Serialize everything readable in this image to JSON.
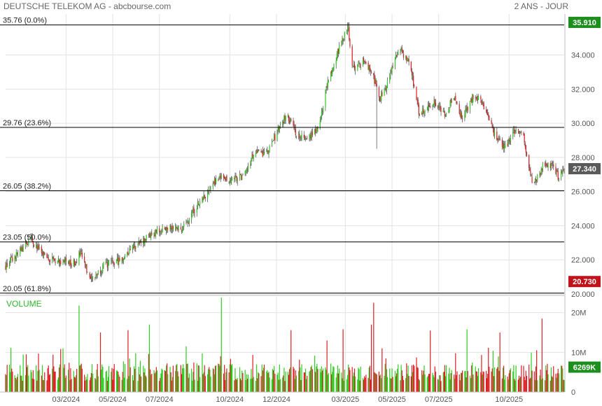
{
  "header": {
    "title": "DEUTSCHE TELEKOM AG - abcbourse.com",
    "period": "2 ANS - JOUR"
  },
  "colors": {
    "up": "#2ecc1f",
    "down": "#dd1f24",
    "grid": "#e3e3e3",
    "fib_line": "#000000",
    "high_badge": "#1e8f1e",
    "last_badge": "#5a5a5a",
    "low_badge": "#c0141a",
    "vol_badge": "#1e8f1e",
    "volume_label": "#2fb52f"
  },
  "chart_data": [
    {
      "type": "candlestick",
      "title": "DEUTSCHE TELEKOM AG - abcbourse.com",
      "period": "2 ANS - JOUR",
      "ylim": [
        20,
        36.4
      ],
      "y_ticks": [
        "20.000",
        "22.000",
        "24.000",
        "26.000",
        "28.000",
        "30.000",
        "32.000",
        "34.000"
      ],
      "x_ticks": [
        "03/2024",
        "05/2024",
        "07/2024",
        "10/2024",
        "12/2024",
        "03/2025",
        "05/2025",
        "07/2025",
        "10/2025"
      ],
      "x_tick_dates": [
        "2024-03-01",
        "2024-05-01",
        "2024-07-01",
        "2024-10-01",
        "2024-12-01",
        "2025-03-01",
        "2025-05-01",
        "2025-07-01",
        "2025-10-01"
      ],
      "start_date": "2023-12-13",
      "end_date": "2025-12-12",
      "price_path": [
        [
          "2023-12-13",
          21.6
        ],
        [
          "2024-01-05",
          22.7
        ],
        [
          "2024-01-15",
          23.2
        ],
        [
          "2024-02-01",
          22.2
        ],
        [
          "2024-02-15",
          22.0
        ],
        [
          "2024-03-01",
          21.9
        ],
        [
          "2024-03-10",
          21.7
        ],
        [
          "2024-03-20",
          22.4
        ],
        [
          "2024-03-28",
          21.4
        ],
        [
          "2024-04-05",
          20.9
        ],
        [
          "2024-04-20",
          21.7
        ],
        [
          "2024-05-01",
          21.8
        ],
        [
          "2024-05-15",
          22.1
        ],
        [
          "2024-05-25",
          22.7
        ],
        [
          "2024-06-10",
          23.1
        ],
        [
          "2024-06-25",
          23.6
        ],
        [
          "2024-07-15",
          24.0
        ],
        [
          "2024-07-31",
          23.8
        ],
        [
          "2024-08-15",
          24.9
        ],
        [
          "2024-09-01",
          25.9
        ],
        [
          "2024-09-15",
          26.8
        ],
        [
          "2024-10-01",
          26.7
        ],
        [
          "2024-10-20",
          26.9
        ],
        [
          "2024-11-01",
          28.2
        ],
        [
          "2024-11-20",
          28.3
        ],
        [
          "2024-12-05",
          29.8
        ],
        [
          "2024-12-15",
          30.5
        ],
        [
          "2024-12-25",
          29.5
        ],
        [
          "2025-01-10",
          29.1
        ],
        [
          "2025-01-25",
          29.8
        ],
        [
          "2025-02-05",
          32.2
        ],
        [
          "2025-02-20",
          34.3
        ],
        [
          "2025-03-05",
          35.6
        ],
        [
          "2025-03-10",
          33.2
        ],
        [
          "2025-03-25",
          33.6
        ],
        [
          "2025-04-05",
          33.0
        ],
        [
          "2025-04-15",
          31.5
        ],
        [
          "2025-04-25",
          32.3
        ],
        [
          "2025-05-10",
          34.4
        ],
        [
          "2025-05-25",
          33.4
        ],
        [
          "2025-06-05",
          30.6
        ],
        [
          "2025-06-25",
          31.2
        ],
        [
          "2025-07-10",
          30.4
        ],
        [
          "2025-07-20",
          31.6
        ],
        [
          "2025-08-01",
          30.2
        ],
        [
          "2025-08-15",
          31.6
        ],
        [
          "2025-08-25",
          31.4
        ],
        [
          "2025-09-10",
          29.5
        ],
        [
          "2025-09-25",
          28.6
        ],
        [
          "2025-10-10",
          29.7
        ],
        [
          "2025-10-20",
          29.2
        ],
        [
          "2025-11-01",
          26.2
        ],
        [
          "2025-11-15",
          27.5
        ],
        [
          "2025-11-25",
          27.6
        ],
        [
          "2025-12-05",
          26.8
        ],
        [
          "2025-12-12",
          27.34
        ]
      ],
      "tail_spikes": [
        {
          "date": "2025-04-12",
          "low": 28.5
        },
        {
          "date": "2025-03-05",
          "high": 35.91
        }
      ],
      "fibonacci_levels": [
        {
          "label": "35.76  (0.0%)",
          "value": 35.76
        },
        {
          "label": "29.76  (23.6%)",
          "value": 29.76
        },
        {
          "label": "26.05  (38.2%)",
          "value": 26.05
        },
        {
          "label": "23.05  (50.0%)",
          "value": 23.05
        },
        {
          "label": "20.05  (61.8%)",
          "value": 20.05
        }
      ],
      "badges": {
        "high": "35.910",
        "last": "27.340",
        "low": "20.730"
      },
      "last_value": 27.34
    },
    {
      "type": "bar",
      "title": "VOLUME",
      "ylim": [
        0,
        24
      ],
      "y_ticks": [
        "0",
        "10M",
        "20M"
      ],
      "y_tick_values": [
        0,
        10,
        20
      ],
      "base_volume_m": 5.0,
      "spikes": [
        {
          "date": "2024-01-09",
          "value": 9.5
        },
        {
          "date": "2024-02-26",
          "value": 11.0
        },
        {
          "date": "2024-03-18",
          "value": 21.8
        },
        {
          "date": "2024-04-15",
          "value": 15.0
        },
        {
          "date": "2024-05-21",
          "value": 15.6
        },
        {
          "date": "2024-06-18",
          "value": 17.0
        },
        {
          "date": "2024-08-05",
          "value": 11.5
        },
        {
          "date": "2024-09-20",
          "value": 23.8
        },
        {
          "date": "2024-12-20",
          "value": 15.6
        },
        {
          "date": "2025-02-05",
          "value": 13.0
        },
        {
          "date": "2025-02-26",
          "value": 15.8
        },
        {
          "date": "2025-04-04",
          "value": 17.0
        },
        {
          "date": "2025-04-07",
          "value": 22.5
        },
        {
          "date": "2025-06-20",
          "value": 15.5
        },
        {
          "date": "2025-08-07",
          "value": 15.8
        },
        {
          "date": "2025-09-19",
          "value": 15.0
        },
        {
          "date": "2025-11-06",
          "value": 10.5
        },
        {
          "date": "2025-11-13",
          "value": 18.5
        },
        {
          "date": "2025-11-28",
          "value": 6.5
        }
      ],
      "last_badge": "6269K",
      "last_value_m": 6.269,
      "label": "VOLUME"
    }
  ]
}
